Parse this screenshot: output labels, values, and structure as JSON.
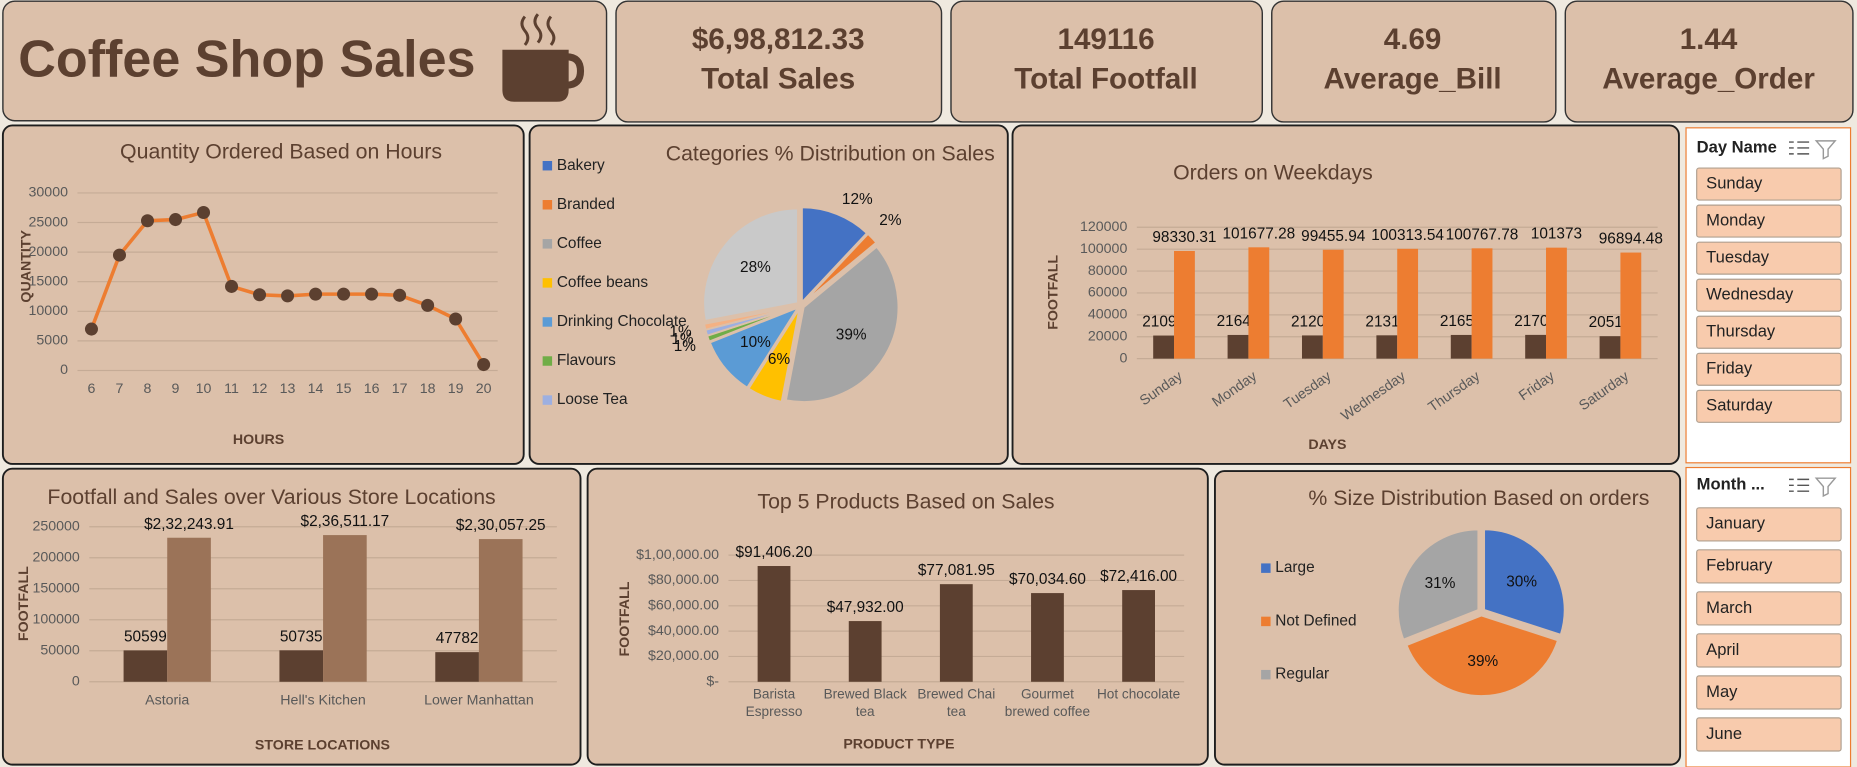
{
  "header": {
    "title": "Coffee Shop Sales"
  },
  "kpis": [
    {
      "value": "$6,98,812.33",
      "label": "Total Sales"
    },
    {
      "value": "149116",
      "label": "Total Footfall"
    },
    {
      "value": "4.69",
      "label": "Average_Bill"
    },
    {
      "value": "1.44",
      "label": "Average_Order"
    }
  ],
  "chart_data": [
    {
      "type": "line",
      "title": "Quantity Ordered Based on Hours",
      "x_label": "HOURS",
      "y_label": "QUANTITY",
      "categories": [
        6,
        7,
        8,
        9,
        10,
        11,
        12,
        13,
        14,
        15,
        16,
        17,
        18,
        19,
        20
      ],
      "values": [
        7000,
        19500,
        25300,
        25500,
        26700,
        14200,
        12800,
        12600,
        12900,
        12900,
        12900,
        12700,
        11000,
        8700,
        1000
      ],
      "color": "#ed7d31",
      "marker_color": "#5c4030",
      "ylim": [
        0,
        30000
      ],
      "yticks": [
        0,
        5000,
        10000,
        15000,
        20000,
        25000,
        30000
      ],
      "grid": true
    },
    {
      "type": "pie",
      "title": "Categories % Distribution on Sales",
      "categories": [
        "Bakery",
        "Branded",
        "Coffee",
        "Coffee beans",
        "Drinking Chocolate",
        "Flavours",
        "Loose Tea",
        null,
        null
      ],
      "values": [
        12,
        2,
        39,
        6,
        10,
        1,
        1,
        1,
        28
      ],
      "value_labels": [
        "12%",
        "2%",
        "39%",
        "6%",
        "10%",
        "1%",
        "1%",
        "1%",
        "28%"
      ],
      "colors": [
        "#4472c4",
        "#ed7d31",
        "#a5a5a5",
        "#ffc000",
        "#5b9bd5",
        "#70ad47",
        "#9dafe0",
        "#f4b183",
        "#c9c9c9"
      ]
    },
    {
      "type": "bar",
      "title": "Orders on Weekdays",
      "x_label": "DAYS",
      "y_label": "FOOTFALL",
      "categories": [
        "Sunday",
        "Monday",
        "Tuesday",
        "Wednesday",
        "Thursday",
        "Friday",
        "Saturday"
      ],
      "series": [
        {
          "color": "#5c4030",
          "values": [
            21096,
            21643,
            21202,
            21310,
            21654,
            21701,
            20510
          ]
        },
        {
          "color": "#ed7d31",
          "values": [
            98330.31,
            101677.28,
            99455.94,
            100313.54,
            100767.78,
            101373,
            96894.48
          ]
        }
      ],
      "ylim": [
        0,
        120000
      ],
      "yticks": [
        0,
        20000,
        40000,
        60000,
        80000,
        100000,
        120000
      ],
      "grid": true
    },
    {
      "type": "bar",
      "title": "Footfall and Sales over Various Store Locations",
      "x_label": "STORE LOCATIONS",
      "y_label": "FOOTFALL",
      "categories": [
        "Astoria",
        "Hell's Kitchen",
        "Lower Manhattan"
      ],
      "series": [
        {
          "color": "#5c4030",
          "values": [
            50599,
            50735,
            47782
          ]
        },
        {
          "color": "#9b7358",
          "values": [
            232243.91,
            236511.17,
            230057.25
          ],
          "value_labels": [
            "$2,32,243.91",
            "$2,36,511.17",
            "$2,30,057.25"
          ]
        }
      ],
      "ylim": [
        0,
        250000
      ],
      "yticks": [
        0,
        50000,
        100000,
        150000,
        200000,
        250000
      ],
      "grid": true
    },
    {
      "type": "bar",
      "title": "Top 5 Products Based on Sales",
      "x_label": "PRODUCT TYPE",
      "y_label": "FOOTFALL",
      "categories": [
        "Barista Espresso",
        "Brewed Black tea",
        "Brewed Chai tea",
        "Gourmet brewed coffee",
        "Hot chocolate"
      ],
      "series": [
        {
          "color": "#5c4030",
          "values": [
            91406.2,
            47932.0,
            77081.95,
            70034.6,
            72416.0
          ],
          "value_labels": [
            "$91,406.20",
            "$47,932.00",
            "$77,081.95",
            "$70,034.60",
            "$72,416.00"
          ]
        }
      ],
      "ylim": [
        0,
        100000
      ],
      "yticks": [
        {
          "value": 0,
          "label": "$-"
        },
        {
          "value": 20000,
          "label": "$20,000.00"
        },
        {
          "value": 40000,
          "label": "$40,000.00"
        },
        {
          "value": 60000,
          "label": "$60,000.00"
        },
        {
          "value": 80000,
          "label": "$80,000.00"
        },
        {
          "value": 100000,
          "label": "$1,00,000.00"
        }
      ],
      "grid": true
    },
    {
      "type": "pie",
      "title": "% Size Distribution Based on orders",
      "categories": [
        "Large",
        "Not Defined",
        "Regular"
      ],
      "values": [
        30,
        39,
        31
      ],
      "value_labels": [
        "30%",
        "39%",
        "31%"
      ],
      "colors": [
        "#4472c4",
        "#ed7d31",
        "#a5a5a5"
      ]
    }
  ],
  "slicers": [
    {
      "title": "Day Name",
      "items": [
        "Sunday",
        "Monday",
        "Tuesday",
        "Wednesday",
        "Thursday",
        "Friday",
        "Saturday"
      ]
    },
    {
      "title": "Month ...",
      "items": [
        "January",
        "February",
        "March",
        "April",
        "May",
        "June"
      ]
    }
  ]
}
